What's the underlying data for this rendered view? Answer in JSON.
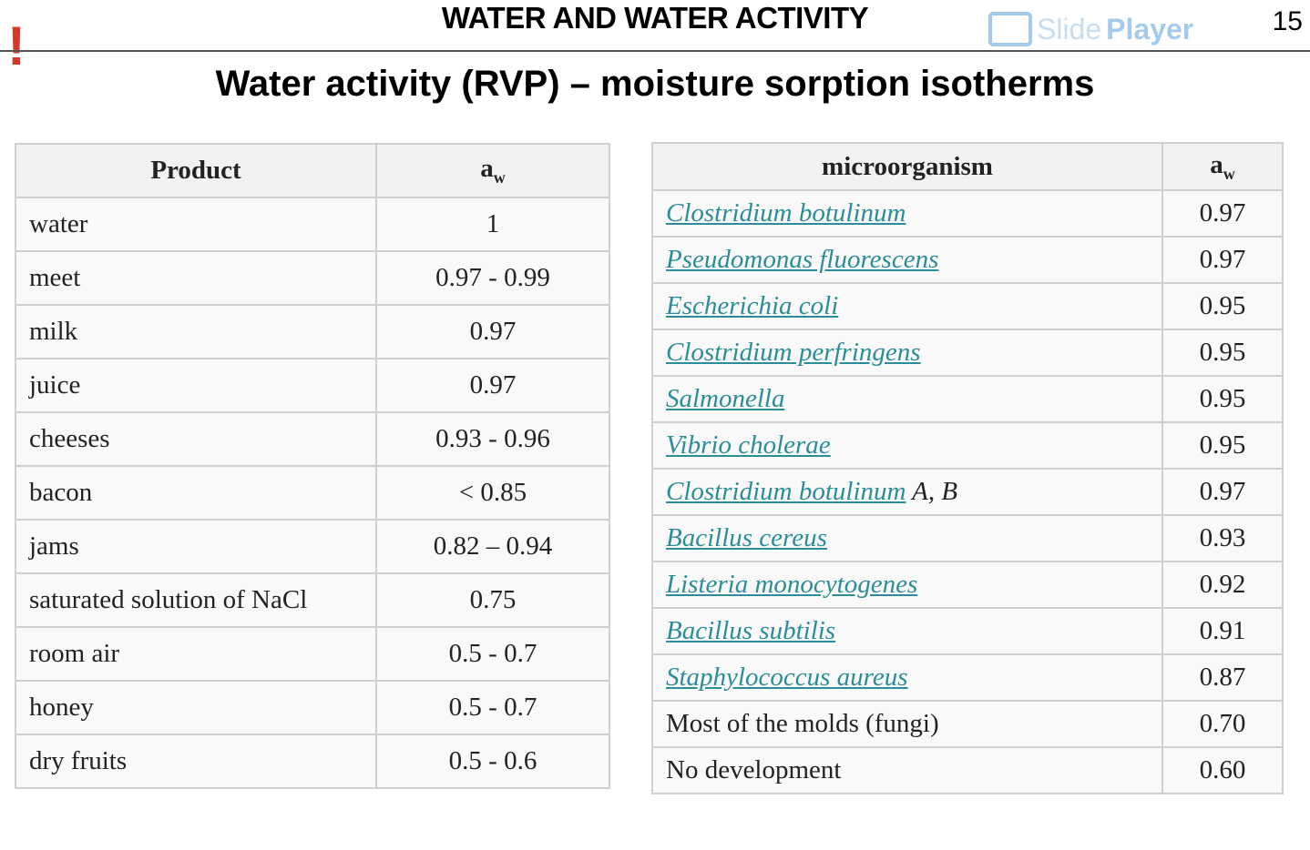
{
  "header": {
    "title": "WATER AND WATER ACTIVITY",
    "slide_number": "15",
    "logo": "SlidePlayer",
    "subtitle": "Water activity (RVP) – moisture sorption isotherms",
    "accent": "#d23a2a"
  },
  "products": {
    "headers": [
      "Product",
      "a",
      "w"
    ],
    "rows": [
      [
        "water",
        "1"
      ],
      [
        "meet",
        "0.97 - 0.99"
      ],
      [
        "milk",
        "0.97"
      ],
      [
        "juice",
        "0.97"
      ],
      [
        "cheeses",
        "0.93 - 0.96"
      ],
      [
        "bacon",
        "< 0.85"
      ],
      [
        "jams",
        "0.82 – 0.94"
      ],
      [
        "saturated solution of NaCl",
        "0.75"
      ],
      [
        "room air",
        "0.5 - 0.7"
      ],
      [
        "honey",
        "0.5 - 0.7"
      ],
      [
        "dry fruits",
        "0.5 - 0.6"
      ]
    ]
  },
  "micro": {
    "headers": [
      "microorganism",
      "a",
      "w"
    ],
    "rows": [
      {
        "name": "Clostridium botulinum",
        "link": true,
        "value": "0.97"
      },
      {
        "name": "Pseudomonas fluorescens",
        "link": true,
        "value": "0.97"
      },
      {
        "name": "Escherichia coli",
        "link": true,
        "value": "0.95"
      },
      {
        "name": "Clostridium perfringens",
        "link": true,
        "value": "0.95"
      },
      {
        "name": "Salmonella",
        "link": true,
        "value": "0.95"
      },
      {
        "name": "Vibrio cholerae",
        "link": true,
        "value": "0.95"
      },
      {
        "name": "Clostridium botulinum",
        "link": true,
        "suffix": " A, B",
        "value": "0.97"
      },
      {
        "name": "Bacillus cereus",
        "link": true,
        "value": "0.93"
      },
      {
        "name": "Listeria monocytogenes",
        "link": true,
        "value": "0.92"
      },
      {
        "name": "Bacillus subtilis",
        "link": true,
        "value": "0.91"
      },
      {
        "name": "Staphylococcus aureus",
        "link": true,
        "value": "0.87"
      },
      {
        "name": "Most of the molds (fungi)",
        "link": false,
        "value": "0.70"
      },
      {
        "name": "No development",
        "link": false,
        "value": "0.60"
      }
    ]
  }
}
